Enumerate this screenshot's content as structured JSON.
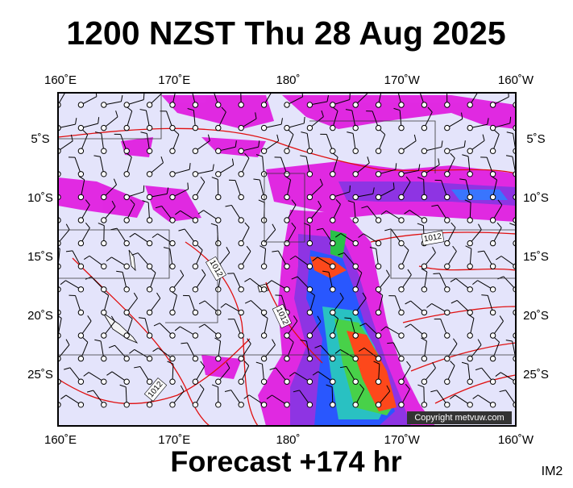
{
  "title": "1200 NZST Thu 28 Aug 2025",
  "map": {
    "lon_labels": [
      "160˚E",
      "170˚E",
      "180˚",
      "170˚W",
      "160˚W"
    ],
    "lat_labels": [
      "5˚S",
      "10˚S",
      "15˚S",
      "20˚S",
      "25˚S"
    ],
    "isobar_labels": [
      "1012",
      "1012",
      "1012",
      "1012"
    ],
    "copyright": "Copyright metvuw.com"
  },
  "footer": "Forecast +174 hr",
  "corner_label": "IM2"
}
